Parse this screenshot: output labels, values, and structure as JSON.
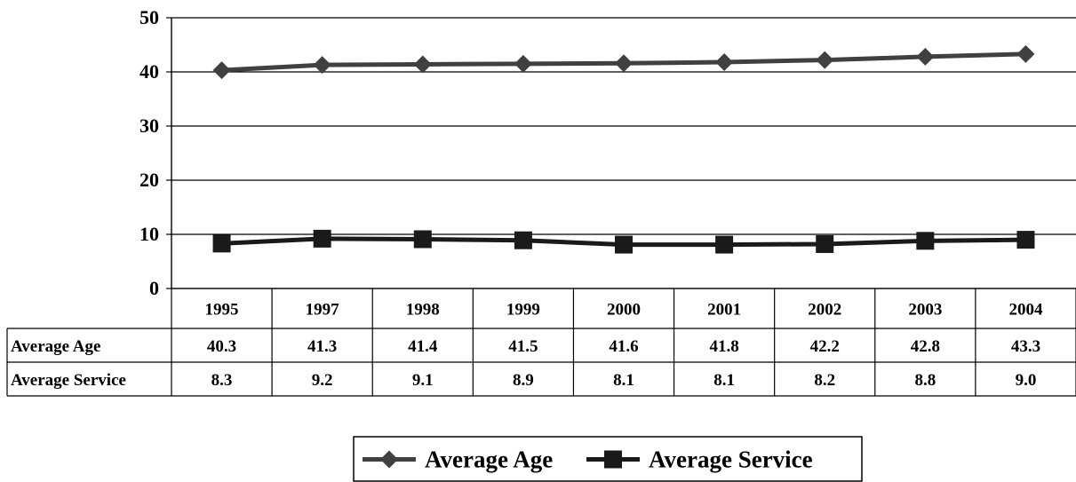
{
  "chart_data": {
    "type": "line",
    "categories": [
      "1995",
      "1997",
      "1998",
      "1999",
      "2000",
      "2001",
      "2002",
      "2003",
      "2004"
    ],
    "series": [
      {
        "name": "Average Age",
        "values": [
          40.3,
          41.3,
          41.4,
          41.5,
          41.6,
          41.8,
          42.2,
          42.8,
          43.3
        ],
        "marker": "diamond",
        "color": "#404040"
      },
      {
        "name": "Average Service",
        "values": [
          8.3,
          9.2,
          9.1,
          8.9,
          8.1,
          8.1,
          8.2,
          8.8,
          9.0
        ],
        "marker": "square",
        "color": "#1a1a1a"
      }
    ],
    "table_values": {
      "Average Age": [
        "40.3",
        "41.3",
        "41.4",
        "41.5",
        "41.6",
        "41.8",
        "42.2",
        "42.8",
        "43.3"
      ],
      "Average Service": [
        "8.3",
        "9.2",
        "9.1",
        "8.9",
        "8.1",
        "8.1",
        "8.2",
        "8.8",
        "9.0"
      ]
    },
    "yticks": [
      "0",
      "10",
      "20",
      "30",
      "40",
      "50"
    ],
    "ylim": [
      0,
      50
    ],
    "grid": true,
    "legend_position": "bottom",
    "data_table": true
  }
}
